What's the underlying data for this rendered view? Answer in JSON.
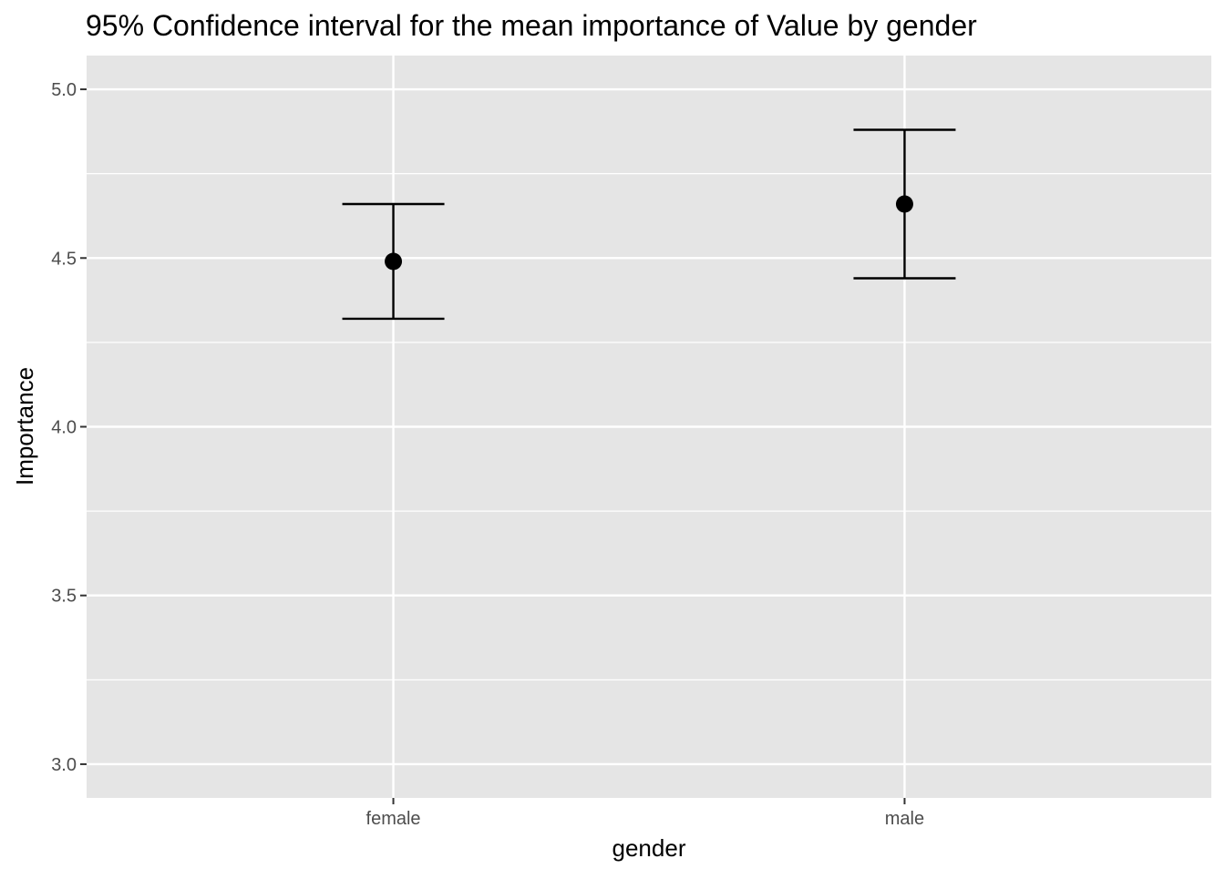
{
  "chart_data": {
    "type": "scatter",
    "title": "95% Confidence interval for the mean importance of Value by gender",
    "xlabel": "gender",
    "ylabel": "Importance",
    "categories": [
      "female",
      "male"
    ],
    "series": [
      {
        "values": [
          4.49,
          4.66
        ],
        "lower": [
          4.32,
          4.44
        ],
        "upper": [
          4.66,
          4.88
        ]
      }
    ],
    "ylim": [
      2.9,
      5.1
    ],
    "yticks": [
      3.0,
      3.5,
      4.0,
      4.5,
      5.0
    ],
    "ytick_labels": [
      "3.0",
      "3.5",
      "4.0",
      "4.5",
      "5.0"
    ],
    "grid": true,
    "legend": "none",
    "colors": {
      "panel": "#e5e5e5",
      "grid": "#ffffff",
      "marks": "#000000",
      "tick_text": "#4d4d4d",
      "ticks": "#333333"
    }
  }
}
